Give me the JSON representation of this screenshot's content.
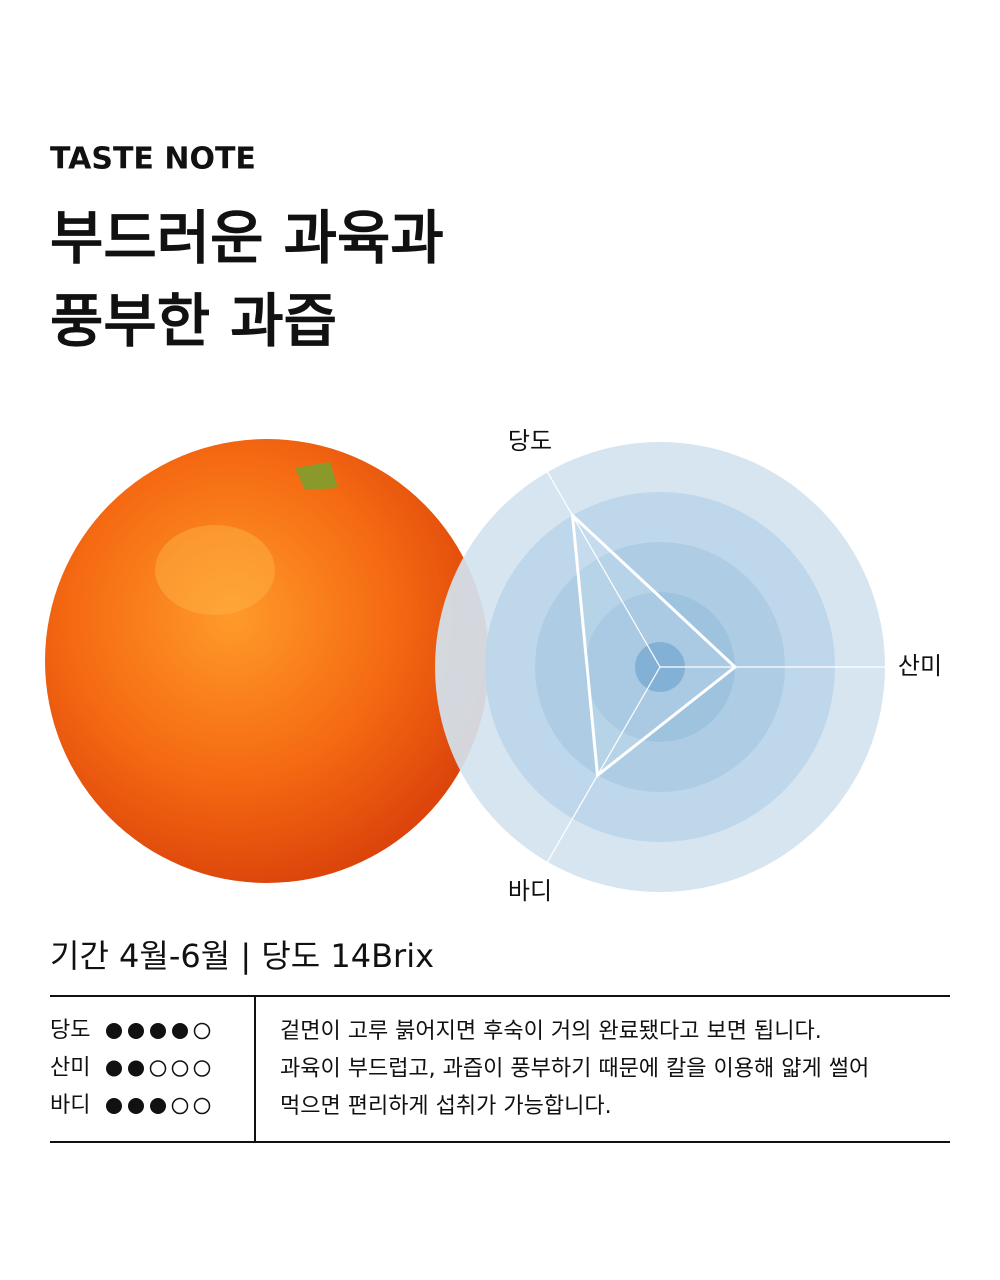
{
  "header": {
    "label": "TASTE NOTE",
    "title": [
      "부드러운 과육과",
      "풍부한 과즙"
    ]
  },
  "chart_data": {
    "type": "radar",
    "categories": [
      "당도",
      "산미",
      "바디"
    ],
    "values": [
      4,
      2,
      3
    ],
    "levels": [
      1,
      2,
      3,
      4,
      5
    ]
  },
  "info": "기간 4월-6월 | 당도 14Brix",
  "table": {
    "description": [
      "겉면이 고루 붉어지면 후숙이 거의 완료됐다고 보면 됩니다.",
      "과육이 부드럽고, 과즙이 풍부하기 때문에 칼을 이용해 얇게 썰어",
      "먹으면 편리하게 섭취가 가능합니다."
    ]
  }
}
